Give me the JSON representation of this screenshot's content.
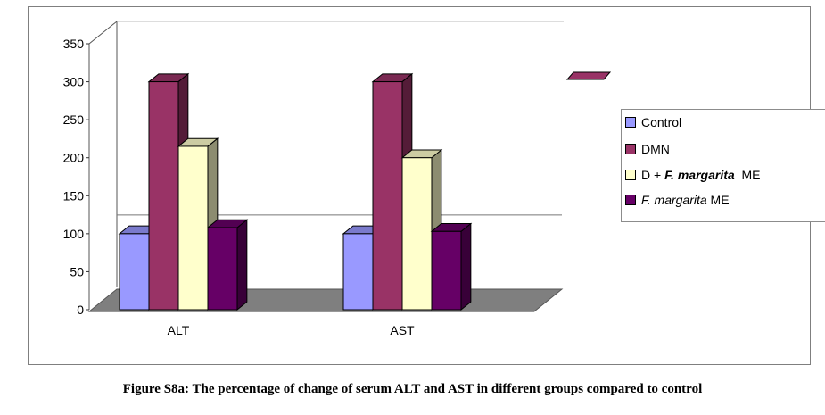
{
  "chart_data": {
    "type": "bar",
    "style": "3d-clustered-column",
    "categories": [
      "ALT",
      "AST"
    ],
    "series": [
      {
        "name": "Control",
        "color": "#9999ff",
        "values": [
          100,
          100
        ]
      },
      {
        "name": "DMN",
        "color": "#993366",
        "values": [
          300,
          300
        ]
      },
      {
        "name": "D + F. margarita ME",
        "color": "#ffffcc",
        "values": [
          215,
          200
        ]
      },
      {
        "name": "F. margarita ME",
        "color": "#660066",
        "values": [
          108,
          103
        ]
      }
    ],
    "ylim": [
      0,
      350
    ],
    "yticks": [
      "0",
      "50",
      "100",
      "150",
      "200",
      "250",
      "300",
      "350"
    ],
    "xlabel": "",
    "ylabel": "",
    "legend_position": "right",
    "grid": false
  },
  "legend": {
    "items": [
      {
        "label": "Control"
      },
      {
        "label": "DMN"
      },
      {
        "label_prefix": "D + ",
        "label_italic": "F. margarita",
        "label_suffix": "  ME"
      },
      {
        "label_italic": "F. margarita",
        "label_suffix": " ME"
      }
    ]
  },
  "caption": "Figure S8a: The percentage of change of serum ALT and AST in different groups compared to control"
}
